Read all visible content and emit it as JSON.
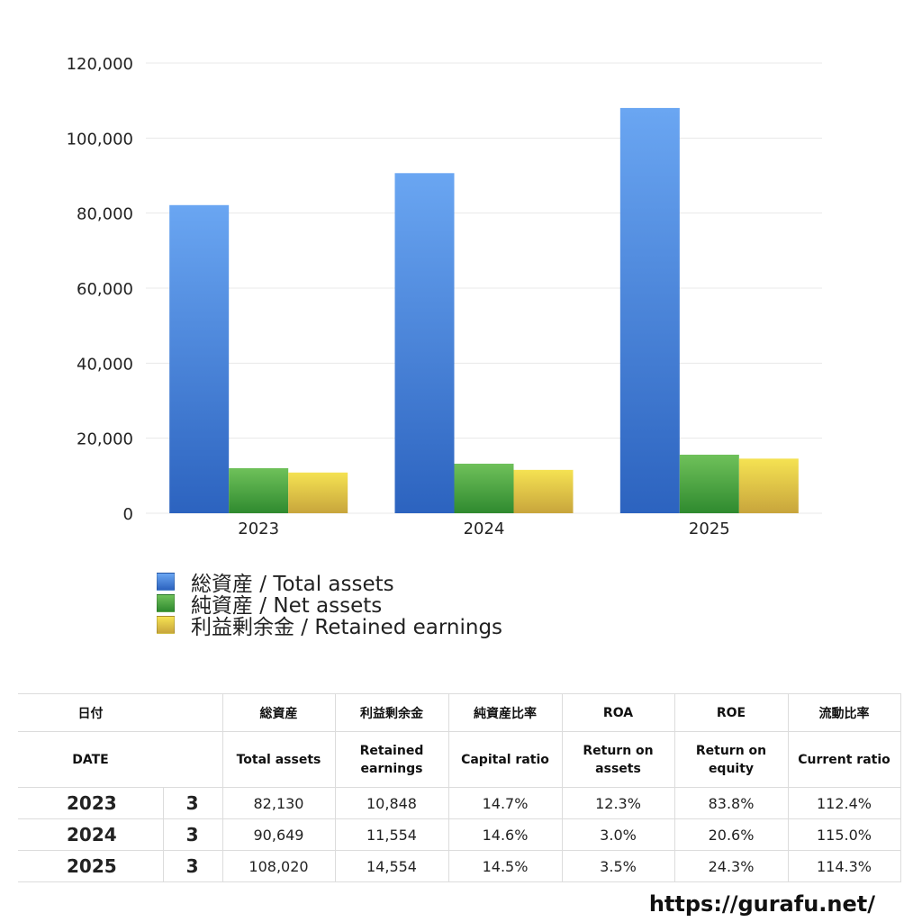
{
  "chart_data": {
    "type": "bar",
    "categories": [
      "2023",
      "2024",
      "2025"
    ],
    "series": [
      {
        "name": "総資産 / Total assets",
        "values": [
          82130,
          90649,
          108020
        ],
        "color": "#4a86dc"
      },
      {
        "name": "純資産 / Net assets",
        "values": [
          12000,
          13200,
          15600
        ],
        "color": "#4ea640"
      },
      {
        "name": "利益剰余金 / Retained earnings",
        "values": [
          10848,
          11554,
          14554
        ],
        "color": "#e3cb45"
      }
    ],
    "ylim": [
      0,
      120000
    ],
    "yticks": [
      "0",
      "20,000",
      "40,000",
      "60,000",
      "80,000",
      "100,000",
      "120,000"
    ],
    "ytick_values": [
      0,
      20000,
      40000,
      60000,
      80000,
      100000,
      120000
    ],
    "grid": true,
    "legend": "bottom-left",
    "title": "",
    "xlabel": "",
    "ylabel": ""
  },
  "table": {
    "head_jp": {
      "date": "日付",
      "total": "総資産",
      "retained": "利益剰余金",
      "capital": "純資産比率",
      "roa": "ROA",
      "roe": "ROE",
      "current": "流動比率"
    },
    "head_en": {
      "date": "DATE",
      "total": "Total assets",
      "retained_1": "Retained",
      "retained_2": "earnings",
      "capital": "Capital ratio",
      "roa_1": "Return on",
      "roa_2": "assets",
      "roe_1": "Return on",
      "roe_2": "equity",
      "current": "Current ratio"
    },
    "rows": [
      {
        "year": "2023",
        "month": "3",
        "total": "82,130",
        "retained": "10,848",
        "capital": "14.7%",
        "roa": "12.3%",
        "roe": "83.8%",
        "current": "112.4%"
      },
      {
        "year": "2024",
        "month": "3",
        "total": "90,649",
        "retained": "11,554",
        "capital": "14.6%",
        "roa": "3.0%",
        "roe": "20.6%",
        "current": "115.0%"
      },
      {
        "year": "2025",
        "month": "3",
        "total": "108,020",
        "retained": "14,554",
        "capital": "14.5%",
        "roa": "3.5%",
        "roe": "24.3%",
        "current": "114.3%"
      }
    ]
  },
  "site_url": "https://gurafu.net/"
}
